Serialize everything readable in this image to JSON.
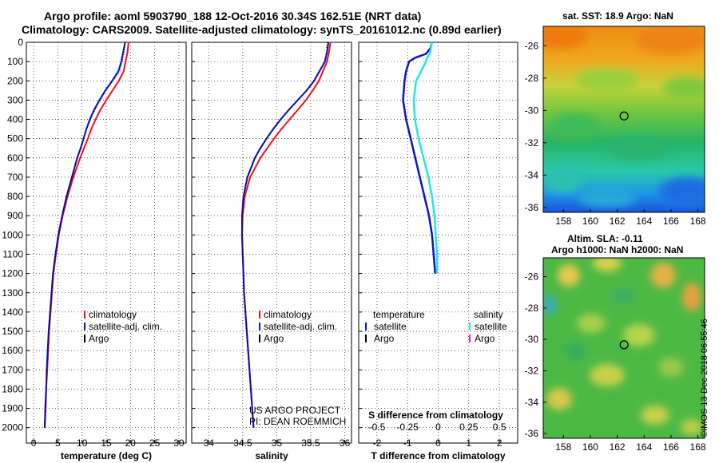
{
  "title_line1": "Argo profile: aoml 5903790_188 12-Oct-2016 30.34S 162.51E (NRT data)",
  "title_line2": "Climatology: CARS2009. Satellite-adjusted climatology: synTS_20161012.nc (0.89d earlier)",
  "credit_line1": "US ARGO PROJECT",
  "credit_line2": "PI: DEAN ROEMMICH",
  "imos_stamp": "©IMOS 13-Dec-2018 06:55:46",
  "colors": {
    "climatology": "#ee1111",
    "satellite_adj": "#0a14c8",
    "argo": "#000000",
    "satellite_T": "#0a14c8",
    "satellite_S": "#22e6e6",
    "argo_S": "#ee22ee"
  },
  "depth_axis": {
    "ticks": [
      0,
      100,
      200,
      300,
      400,
      500,
      600,
      700,
      800,
      900,
      1000,
      1100,
      1200,
      1300,
      1400,
      1500,
      1600,
      1700,
      1800,
      1900,
      2000
    ],
    "range": [
      0,
      2080
    ]
  },
  "chart_data": [
    {
      "type": "line",
      "xlabel": "temperature (deg C)",
      "xlim": [
        -1.5,
        31.5
      ],
      "xticks": [
        0,
        5,
        10,
        15,
        20,
        25,
        30
      ],
      "depth": [
        0,
        50,
        100,
        150,
        200,
        250,
        300,
        350,
        400,
        450,
        500,
        550,
        600,
        700,
        800,
        900,
        1000,
        1100,
        1200,
        1300,
        1400,
        1500,
        1600,
        1700,
        1800,
        1900,
        2000
      ],
      "legend": [
        "climatology",
        "satellite-adj. clim.",
        "Argo"
      ],
      "series": [
        {
          "name": "climatology",
          "values": [
            19.6,
            19.4,
            19.0,
            18.6,
            17.6,
            16.3,
            15.0,
            13.8,
            12.8,
            11.9,
            11.2,
            10.4,
            9.6,
            8.2,
            7.0,
            6.0,
            5.2,
            4.6,
            4.1,
            3.8,
            3.5,
            3.2,
            3.0,
            2.8,
            2.6,
            2.5,
            2.3
          ]
        },
        {
          "name": "satellite-adj. clim.",
          "values": [
            18.9,
            18.5,
            18.1,
            17.5,
            16.2,
            14.8,
            13.6,
            12.5,
            11.6,
            10.9,
            10.3,
            9.7,
            9.0,
            7.9,
            6.8,
            5.9,
            5.1,
            4.5,
            4.0,
            3.7,
            3.4,
            3.1,
            2.9,
            2.7,
            2.6,
            2.4,
            2.3
          ]
        },
        {
          "name": "Argo",
          "values": [
            18.9,
            18.7,
            18.3,
            17.8,
            16.4,
            15.0,
            13.8,
            12.7,
            11.8,
            11.0,
            10.4,
            9.8,
            9.1,
            7.9,
            6.8,
            5.9,
            5.1,
            4.5,
            4.0,
            3.7,
            3.4,
            3.1,
            2.9,
            2.7,
            2.6,
            2.4,
            2.3
          ]
        }
      ]
    },
    {
      "type": "line",
      "xlabel": "salinity",
      "xlim": [
        33.75,
        36.1
      ],
      "xticks": [
        34,
        34.5,
        35,
        35.5,
        36
      ],
      "depth": [
        0,
        50,
        100,
        150,
        200,
        250,
        300,
        350,
        400,
        450,
        500,
        550,
        600,
        700,
        800,
        900,
        1000,
        1100,
        1200,
        1300,
        1400,
        1500,
        1600,
        1700,
        1800,
        1900,
        2000
      ],
      "legend": [
        "climatology",
        "satellite-adj. clim.",
        "Argo"
      ],
      "series": [
        {
          "name": "climatology",
          "values": [
            35.79,
            35.77,
            35.74,
            35.68,
            35.62,
            35.53,
            35.43,
            35.31,
            35.19,
            35.07,
            34.96,
            34.86,
            34.76,
            34.61,
            34.53,
            34.5,
            34.49,
            34.5,
            34.51,
            34.52,
            34.54,
            34.56,
            34.58,
            34.6,
            34.62,
            34.64,
            34.66
          ]
        },
        {
          "name": "satellite-adj. clim.",
          "values": [
            35.76,
            35.74,
            35.71,
            35.63,
            35.55,
            35.44,
            35.31,
            35.18,
            35.06,
            34.95,
            34.85,
            34.76,
            34.68,
            34.57,
            34.51,
            34.49,
            34.49,
            34.5,
            34.51,
            34.52,
            34.54,
            34.56,
            34.58,
            34.6,
            34.62,
            34.64,
            34.66
          ]
        },
        {
          "name": "Argo",
          "values": [
            35.74,
            35.73,
            35.7,
            35.62,
            35.54,
            35.44,
            35.3,
            35.17,
            35.05,
            34.94,
            34.84,
            34.75,
            34.67,
            34.56,
            34.51,
            34.49,
            34.49,
            34.5,
            34.51,
            34.52,
            34.54,
            34.56,
            34.58,
            34.6,
            34.62,
            34.64,
            34.66
          ]
        }
      ]
    },
    {
      "type": "line",
      "xlabel": "T difference from climatology",
      "xlabel_S": "S difference from climatology",
      "xlim": [
        -2.6,
        2.6
      ],
      "xticks": [
        -2,
        -1,
        0,
        1,
        2
      ],
      "xticks_S": [
        "-0.5",
        "-0.25",
        "0",
        "0.25",
        "0.5"
      ],
      "depth": [
        0,
        30,
        60,
        80,
        100,
        150,
        200,
        300,
        400,
        500,
        600,
        700,
        800,
        900,
        1000,
        1100,
        1200
      ],
      "legend_T": {
        "heading": "temperature",
        "entries": [
          "satellite",
          "Argo"
        ]
      },
      "legend_S": {
        "heading": "salinity",
        "entries": [
          "satellite",
          "Argo"
        ]
      },
      "series": [
        {
          "name": "satellite",
          "values": [
            -0.2,
            -0.25,
            -0.4,
            -0.75,
            -0.95,
            -1.05,
            -1.1,
            -1.15,
            -1.05,
            -0.9,
            -0.75,
            -0.6,
            -0.45,
            -0.3,
            -0.2,
            -0.15,
            -0.1
          ]
        },
        {
          "name": "satellite",
          "values": [
            -0.05,
            -0.06,
            -0.07,
            -0.09,
            -0.1,
            -0.14,
            -0.18,
            -0.2,
            -0.19,
            -0.16,
            -0.12,
            -0.08,
            -0.05,
            -0.03,
            -0.02,
            -0.01,
            -0.01
          ]
        }
      ]
    }
  ],
  "map_sst": {
    "title": "sat. SST: 18.9 Argo: NaN",
    "xticks": [
      "158",
      "160",
      "162",
      "164",
      "166",
      "168"
    ],
    "yticks": [
      "-26",
      "-28",
      "-30",
      "-32",
      "-34",
      "-36"
    ],
    "argo_lon": 162.51,
    "argo_lat": -30.34
  },
  "map_sla": {
    "title_line1": "Altim. SLA: -0.11",
    "title_line2": "Argo h1000: NaN h2000: NaN",
    "xticks": [
      "158",
      "160",
      "162",
      "164",
      "166",
      "168"
    ],
    "yticks": [
      "-26",
      "-28",
      "-30",
      "-32",
      "-34",
      "-36"
    ],
    "argo_lon": 162.51,
    "argo_lat": -30.34
  }
}
